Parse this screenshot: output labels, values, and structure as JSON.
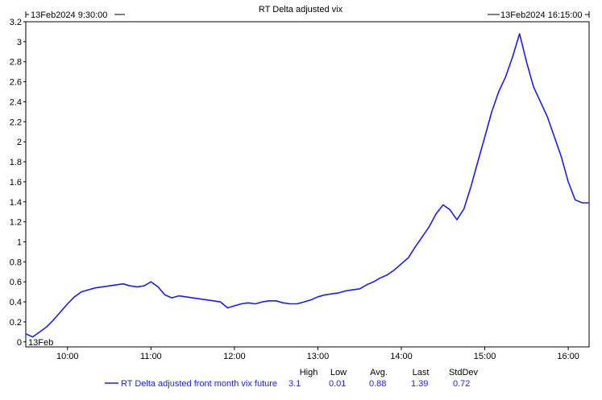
{
  "header": {
    "start_range": "13Feb2024  9:30:00",
    "end_range": "13Feb2024  16:15:00"
  },
  "legend": {
    "high_label": "High",
    "low_label": "Low",
    "avg_label": "Avg.",
    "last_label": "Last",
    "std_label": "StdDev",
    "high": "3.1",
    "low": "0.01",
    "avg": "0.88",
    "last": "1.39",
    "std": "0.72"
  },
  "chart_data": {
    "type": "line",
    "title": "RT Delta adjusted vix",
    "date_label": "13Feb",
    "xlabel": "",
    "ylabel": "",
    "x_unit": "time",
    "xlim": [
      "09:30",
      "16:15"
    ],
    "ylim": [
      -0.05,
      3.2
    ],
    "x_ticks": [
      "10:00",
      "11:00",
      "12:00",
      "13:00",
      "14:00",
      "15:00",
      "16:00"
    ],
    "y_ticks": [
      "0",
      "0.2",
      "0.4",
      "0.6",
      "0.8",
      "1",
      "1.2",
      "1.4",
      "1.6",
      "1.8",
      "2",
      "2.2",
      "2.4",
      "2.6",
      "2.8",
      "3",
      "3.2"
    ],
    "grid": false,
    "legend_position": "bottom",
    "line_color": "#1a1aff",
    "series": [
      {
        "name": "RT Delta adjusted front month vix future",
        "x": [
          "09:30",
          "09:35",
          "09:40",
          "09:45",
          "09:50",
          "09:55",
          "10:00",
          "10:05",
          "10:10",
          "10:15",
          "10:20",
          "10:25",
          "10:30",
          "10:35",
          "10:40",
          "10:45",
          "10:50",
          "10:55",
          "11:00",
          "11:05",
          "11:10",
          "11:15",
          "11:20",
          "11:25",
          "11:30",
          "11:35",
          "11:40",
          "11:45",
          "11:50",
          "11:55",
          "12:00",
          "12:05",
          "12:10",
          "12:15",
          "12:20",
          "12:25",
          "12:30",
          "12:35",
          "12:40",
          "12:45",
          "12:50",
          "12:55",
          "13:00",
          "13:05",
          "13:10",
          "13:15",
          "13:20",
          "13:25",
          "13:30",
          "13:35",
          "13:40",
          "13:45",
          "13:50",
          "13:55",
          "14:00",
          "14:05",
          "14:10",
          "14:15",
          "14:20",
          "14:25",
          "14:30",
          "14:35",
          "14:40",
          "14:45",
          "14:50",
          "14:55",
          "15:00",
          "15:05",
          "15:10",
          "15:15",
          "15:20",
          "15:25",
          "15:30",
          "15:35",
          "15:40",
          "15:45",
          "15:50",
          "15:55",
          "16:00",
          "16:05",
          "16:10",
          "16:15"
        ],
        "values": [
          0.08,
          0.05,
          0.1,
          0.15,
          0.22,
          0.3,
          0.38,
          0.45,
          0.5,
          0.52,
          0.54,
          0.55,
          0.56,
          0.57,
          0.58,
          0.56,
          0.55,
          0.56,
          0.6,
          0.55,
          0.47,
          0.44,
          0.46,
          0.45,
          0.44,
          0.43,
          0.42,
          0.41,
          0.4,
          0.34,
          0.36,
          0.38,
          0.39,
          0.38,
          0.4,
          0.41,
          0.41,
          0.39,
          0.38,
          0.38,
          0.4,
          0.42,
          0.45,
          0.47,
          0.48,
          0.49,
          0.51,
          0.52,
          0.53,
          0.57,
          0.6,
          0.64,
          0.67,
          0.72,
          0.78,
          0.84,
          0.95,
          1.05,
          1.15,
          1.28,
          1.37,
          1.32,
          1.22,
          1.33,
          1.55,
          1.8,
          2.05,
          2.3,
          2.5,
          2.65,
          2.85,
          3.08,
          2.8,
          2.55,
          2.4,
          2.25,
          2.05,
          1.85,
          1.6,
          1.42,
          1.39,
          1.39
        ]
      }
    ]
  }
}
